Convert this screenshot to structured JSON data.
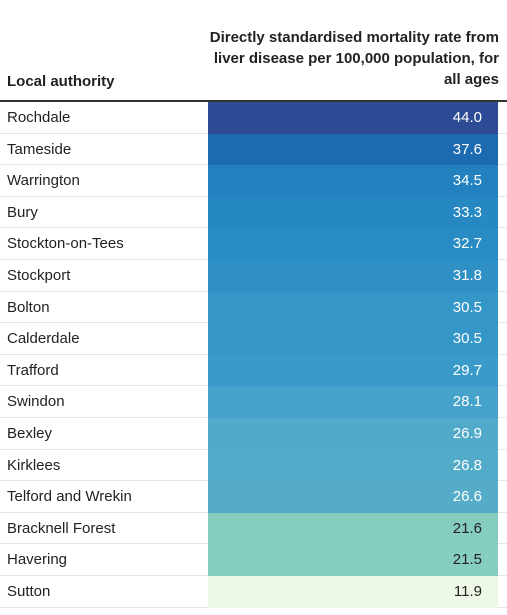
{
  "chart_data": {
    "type": "table",
    "columns": [
      "Local authority",
      "Directly standardised mortality rate from liver disease per 100,000 population, for all ages"
    ],
    "rows": [
      {
        "name": "Rochdale",
        "value": "44.0",
        "color": "#2c4b94",
        "text_color": "#ffffff"
      },
      {
        "name": "Tameside",
        "value": "37.6",
        "color": "#1c6ab0",
        "text_color": "#ffffff"
      },
      {
        "name": "Warrington",
        "value": "34.5",
        "color": "#2281be",
        "text_color": "#ffffff"
      },
      {
        "name": "Bury",
        "value": "33.3",
        "color": "#2688c2",
        "text_color": "#ffffff"
      },
      {
        "name": "Stockton-on-Tees",
        "value": "32.7",
        "color": "#298bc3",
        "text_color": "#ffffff"
      },
      {
        "name": "Stockport",
        "value": "31.8",
        "color": "#2f90c6",
        "text_color": "#ffffff"
      },
      {
        "name": "Bolton",
        "value": "30.5",
        "color": "#3596c8",
        "text_color": "#ffffff"
      },
      {
        "name": "Calderdale",
        "value": "30.5",
        "color": "#3596c8",
        "text_color": "#ffffff"
      },
      {
        "name": "Trafford",
        "value": "29.7",
        "color": "#3a9bca",
        "text_color": "#ffffff"
      },
      {
        "name": "Swindon",
        "value": "28.1",
        "color": "#45a3cb",
        "text_color": "#ffffff"
      },
      {
        "name": "Bexley",
        "value": "26.9",
        "color": "#51aac9",
        "text_color": "#ffffff"
      },
      {
        "name": "Kirklees",
        "value": "26.8",
        "color": "#52abc9",
        "text_color": "#ffffff"
      },
      {
        "name": "Telford and Wrekin",
        "value": "26.6",
        "color": "#54acc8",
        "text_color": "#ffffff"
      },
      {
        "name": "Bracknell Forest",
        "value": "21.6",
        "color": "#84cdbf",
        "text_color": "#222222"
      },
      {
        "name": "Havering",
        "value": "21.5",
        "color": "#86cebf",
        "text_color": "#222222"
      },
      {
        "name": "Sutton",
        "value": "11.9",
        "color": "#eef8e6",
        "text_color": "#222222"
      }
    ]
  }
}
